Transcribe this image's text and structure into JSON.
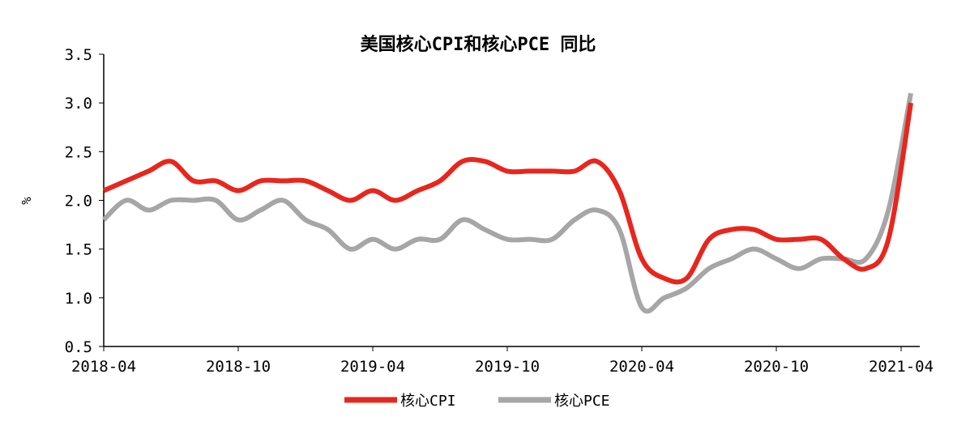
{
  "chart_data": {
    "type": "line",
    "title": "美国核心CPI和核心PCE 同比",
    "xlabel": "",
    "ylabel": "%",
    "ylim": [
      0.5,
      3.5
    ],
    "yticks": [
      "0.5",
      "1.0",
      "1.5",
      "2.0",
      "2.5",
      "3.0",
      "3.5"
    ],
    "xtick_labels": [
      "2018-04",
      "2018-10",
      "2019-04",
      "2019-10",
      "2020-04",
      "2020-10",
      "2021-04"
    ],
    "legend_position": "bottom",
    "x": [
      "2018-04",
      "2018-05",
      "2018-06",
      "2018-07",
      "2018-08",
      "2018-09",
      "2018-10",
      "2018-11",
      "2018-12",
      "2019-01",
      "2019-02",
      "2019-03",
      "2019-04",
      "2019-05",
      "2019-06",
      "2019-07",
      "2019-08",
      "2019-09",
      "2019-10",
      "2019-11",
      "2019-12",
      "2020-01",
      "2020-02",
      "2020-03",
      "2020-04",
      "2020-05",
      "2020-06",
      "2020-07",
      "2020-08",
      "2020-09",
      "2020-10",
      "2020-11",
      "2020-12",
      "2021-01",
      "2021-02",
      "2021-03",
      "2021-04"
    ],
    "series": [
      {
        "name": "核心CPI",
        "color": "#e8261d",
        "values": [
          2.1,
          2.2,
          2.3,
          2.4,
          2.2,
          2.2,
          2.1,
          2.2,
          2.2,
          2.2,
          2.1,
          2.0,
          2.1,
          2.0,
          2.1,
          2.2,
          2.4,
          2.4,
          2.3,
          2.3,
          2.3,
          2.3,
          2.4,
          2.1,
          1.4,
          1.2,
          1.2,
          1.6,
          1.7,
          1.7,
          1.6,
          1.6,
          1.6,
          1.4,
          1.3,
          1.6,
          3.0
        ]
      },
      {
        "name": "核心PCE",
        "color": "#a6a6a6",
        "values": [
          1.8,
          2.0,
          1.9,
          2.0,
          2.0,
          2.0,
          1.8,
          1.9,
          2.0,
          1.8,
          1.7,
          1.5,
          1.6,
          1.5,
          1.6,
          1.6,
          1.8,
          1.7,
          1.6,
          1.6,
          1.6,
          1.8,
          1.9,
          1.7,
          0.9,
          1.0,
          1.1,
          1.3,
          1.4,
          1.5,
          1.4,
          1.3,
          1.4,
          1.4,
          1.4,
          1.9,
          3.1
        ]
      }
    ]
  }
}
